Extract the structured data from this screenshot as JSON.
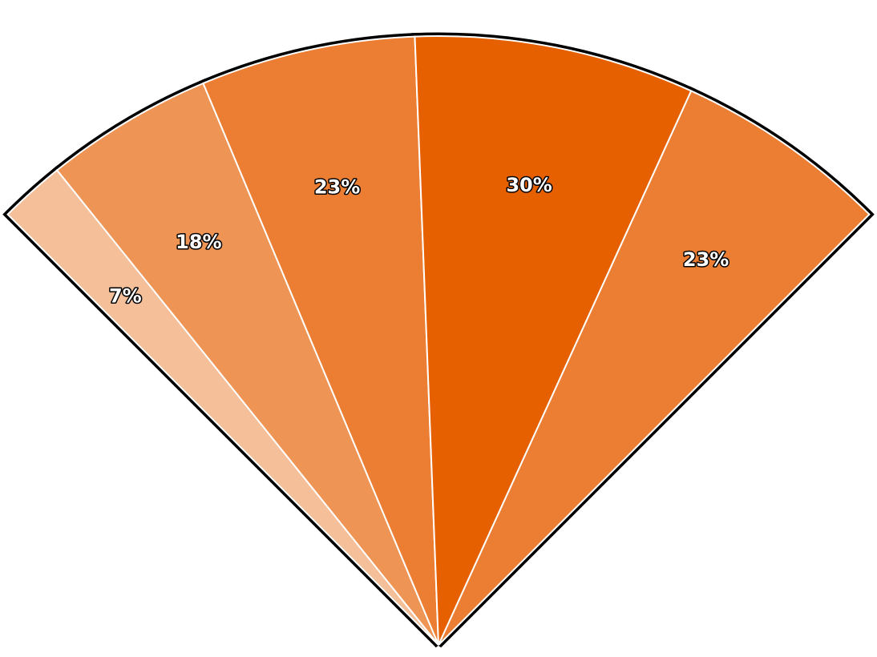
{
  "chart_data": {
    "type": "pie",
    "subtype": "semi-circular fan (half-donut without hole)",
    "start_angle_deg": -45,
    "end_angle_deg": 45,
    "slices": [
      {
        "label": "7%",
        "value": 7,
        "color": "#F5BF99"
      },
      {
        "label": "18%",
        "value": 18,
        "color": "#EE9454"
      },
      {
        "label": "23%",
        "value": 23,
        "color": "#EC7E33"
      },
      {
        "label": "30%",
        "value": 30,
        "color": "#E66000"
      },
      {
        "label": "23%",
        "value": 23,
        "color": "#EC7E33"
      }
    ],
    "title": "",
    "legend": "none"
  }
}
